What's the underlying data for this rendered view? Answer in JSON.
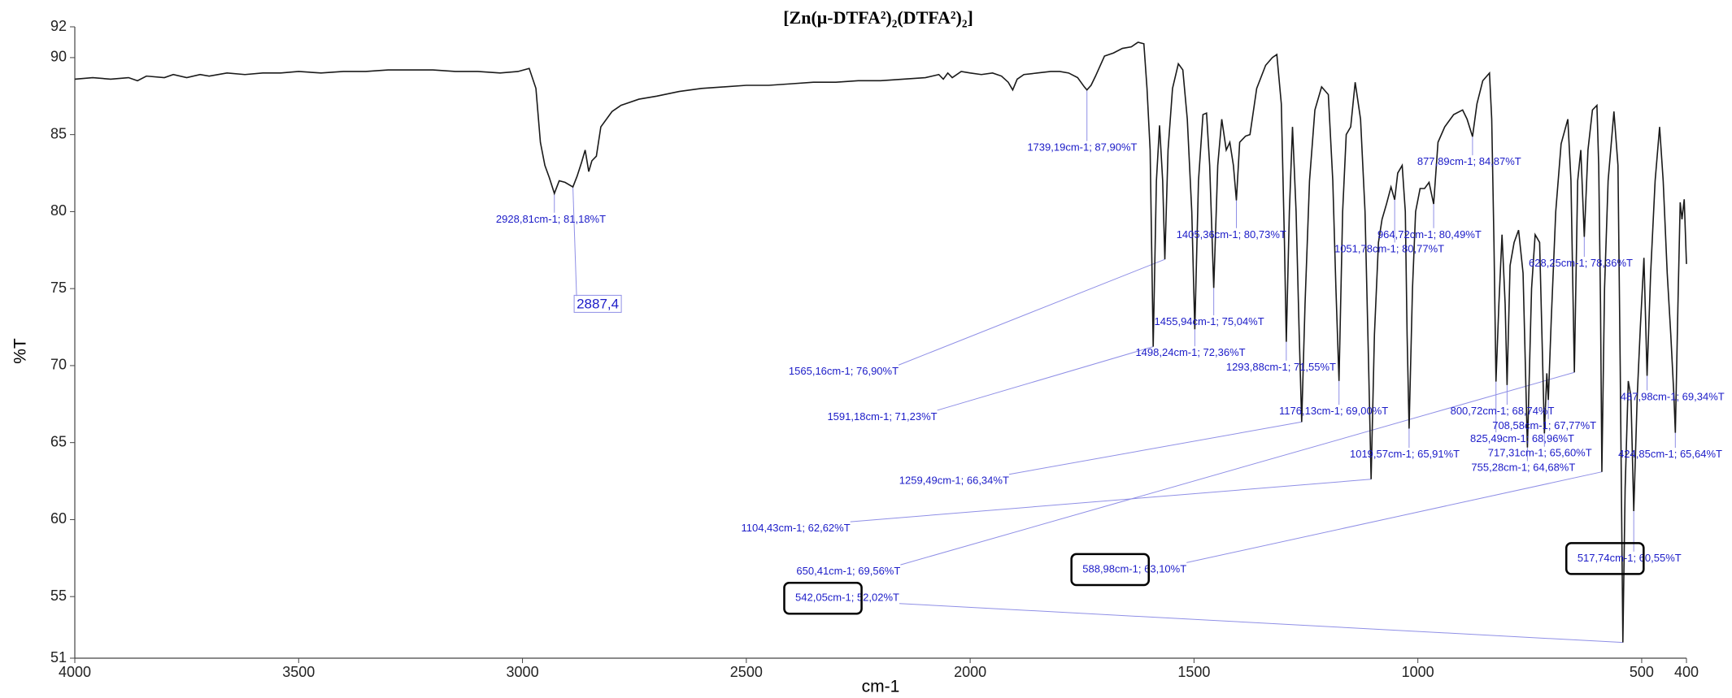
{
  "chart_data": {
    "type": "line",
    "title": "[Zn(μ-DTFA²)₂(DTFA²)₂]",
    "xlabel": "cm-1",
    "ylabel": "%T",
    "color": "#1a1a1a",
    "xlim": [
      4000,
      400
    ],
    "xticks": [
      4000,
      3500,
      3000,
      2500,
      2000,
      1500,
      1000,
      500,
      400
    ],
    "ylim": [
      51,
      92
    ],
    "yticks": [
      51,
      55,
      60,
      65,
      70,
      75,
      80,
      85,
      90,
      92
    ],
    "x": [
      4000,
      3960,
      3920,
      3880,
      3860,
      3840,
      3800,
      3780,
      3750,
      3720,
      3700,
      3660,
      3620,
      3580,
      3540,
      3500,
      3450,
      3400,
      3350,
      3300,
      3250,
      3200,
      3150,
      3100,
      3050,
      3010,
      2985,
      2970,
      2960,
      2950,
      2940,
      2928.81,
      2918,
      2905,
      2887.4,
      2878,
      2868,
      2860,
      2852,
      2845,
      2835,
      2825,
      2800,
      2780,
      2740,
      2700,
      2650,
      2600,
      2550,
      2500,
      2450,
      2400,
      2350,
      2300,
      2250,
      2200,
      2150,
      2100,
      2070,
      2060,
      2050,
      2040,
      2020,
      2000,
      1975,
      1950,
      1930,
      1915,
      1905,
      1895,
      1880,
      1850,
      1820,
      1800,
      1780,
      1760,
      1745,
      1739.19,
      1730,
      1720,
      1700,
      1680,
      1660,
      1640,
      1625,
      1612,
      1605,
      1598,
      1591.18,
      1584,
      1577,
      1570,
      1565.16,
      1558,
      1548,
      1535,
      1525,
      1515,
      1505,
      1498.24,
      1490,
      1480,
      1472,
      1465,
      1455.94,
      1447,
      1438,
      1428,
      1420,
      1412,
      1405.36,
      1398,
      1385,
      1375,
      1360,
      1340,
      1325,
      1315,
      1305,
      1298,
      1293.88,
      1287,
      1280,
      1272,
      1265,
      1259.49,
      1252,
      1242,
      1230,
      1215,
      1200,
      1190,
      1183,
      1176.13,
      1168,
      1160,
      1150,
      1140,
      1128,
      1118,
      1110,
      1104.43,
      1097,
      1088,
      1080,
      1070,
      1060,
      1051.78,
      1045,
      1035,
      1028,
      1024,
      1019.57,
      1012,
      1005,
      995,
      985,
      975,
      964.72,
      955,
      940,
      920,
      900,
      890,
      877.89,
      868,
      855,
      840,
      835,
      830,
      825.49,
      819,
      812,
      805,
      800.72,
      794,
      785,
      775,
      765,
      755.28,
      746,
      738,
      728,
      717.31,
      712,
      708.58,
      702,
      692,
      680,
      665,
      658,
      650.41,
      643,
      636,
      628.25,
      620,
      610,
      600,
      596,
      592,
      588.98,
      583,
      575,
      562,
      553,
      548,
      542.05,
      537,
      530,
      524,
      517.74,
      510,
      503,
      495,
      487.98,
      480,
      470,
      460,
      452,
      443,
      435,
      428,
      424.85,
      419,
      414,
      410,
      405,
      400
    ],
    "values": [
      88.6,
      88.7,
      88.6,
      88.7,
      88.5,
      88.8,
      88.7,
      88.9,
      88.7,
      88.9,
      88.8,
      89.0,
      88.9,
      89.0,
      89.0,
      89.1,
      89.0,
      89.1,
      89.1,
      89.2,
      89.2,
      89.2,
      89.1,
      89.1,
      89.0,
      89.1,
      89.3,
      88.0,
      84.5,
      83.0,
      82.2,
      81.18,
      82.0,
      81.9,
      81.6,
      82.3,
      83.2,
      84.0,
      82.6,
      83.3,
      83.6,
      85.5,
      86.5,
      86.9,
      87.3,
      87.5,
      87.8,
      88.0,
      88.1,
      88.2,
      88.2,
      88.3,
      88.4,
      88.4,
      88.5,
      88.5,
      88.6,
      88.7,
      88.9,
      88.6,
      89.0,
      88.7,
      89.1,
      89.0,
      88.9,
      89.0,
      88.8,
      88.4,
      87.9,
      88.6,
      88.9,
      89.0,
      89.1,
      89.1,
      89.0,
      88.7,
      88.1,
      87.9,
      88.2,
      88.8,
      90.1,
      90.3,
      90.6,
      90.7,
      91.0,
      90.9,
      88.0,
      84.0,
      71.23,
      82.0,
      85.6,
      82.0,
      76.9,
      84.0,
      88.0,
      89.6,
      89.2,
      86.0,
      80.0,
      72.36,
      82.0,
      86.3,
      86.4,
      83.0,
      75.04,
      83.0,
      86.0,
      84.0,
      84.5,
      83.0,
      80.73,
      84.5,
      84.9,
      85.0,
      88.0,
      89.5,
      90.0,
      90.2,
      87.0,
      78.0,
      71.55,
      80.0,
      85.5,
      80.0,
      72.0,
      66.34,
      74.0,
      82.0,
      86.6,
      88.1,
      87.6,
      82.0,
      75.0,
      69.0,
      80.0,
      85.0,
      85.5,
      88.4,
      86.0,
      80.0,
      70.0,
      62.62,
      72.0,
      78.0,
      79.5,
      80.5,
      81.6,
      80.77,
      82.5,
      83.0,
      80.0,
      72.0,
      65.91,
      75.0,
      80.0,
      81.5,
      81.5,
      81.9,
      80.49,
      84.5,
      85.5,
      86.3,
      86.6,
      86.0,
      84.87,
      87.0,
      88.5,
      89.0,
      86.0,
      78.0,
      68.96,
      74.0,
      78.5,
      74.0,
      68.74,
      76.5,
      78.0,
      78.8,
      76.0,
      64.68,
      75.0,
      78.5,
      78.0,
      65.6,
      69.5,
      67.77,
      73.0,
      80.0,
      84.4,
      86.0,
      82.0,
      69.56,
      82.0,
      84.0,
      78.36,
      84.0,
      86.6,
      86.9,
      83.0,
      74.0,
      63.1,
      75.0,
      82.0,
      86.5,
      83.0,
      70.0,
      52.02,
      62.0,
      69.0,
      68.0,
      60.55,
      68.0,
      72.5,
      77.0,
      69.34,
      76.0,
      82.0,
      85.5,
      82.0,
      76.0,
      72.0,
      68.0,
      65.64,
      74.0,
      80.6,
      79.5,
      80.8,
      76.6
    ],
    "annotations": [
      {
        "label": "2928,81cm-1; 81,18%T",
        "x": 2928.81,
        "y": 81.18
      },
      {
        "label": "2887,4",
        "x": 2887.4
      },
      {
        "label": "1739,19cm-1; 87,90%T",
        "x": 1739.19,
        "y": 87.9
      },
      {
        "label": "1591,18cm-1; 71,23%T",
        "x": 1591.18,
        "y": 71.23
      },
      {
        "label": "1565,16cm-1; 76,90%T",
        "x": 1565.16,
        "y": 76.9
      },
      {
        "label": "1498,24cm-1; 72,36%T",
        "x": 1498.24,
        "y": 72.36
      },
      {
        "label": "1455,94cm-1; 75,04%T",
        "x": 1455.94,
        "y": 75.04
      },
      {
        "label": "1405,36cm-1; 80,73%T",
        "x": 1405.36,
        "y": 80.73
      },
      {
        "label": "1293,88cm-1; 71,55%T",
        "x": 1293.88,
        "y": 71.55
      },
      {
        "label": "1259,49cm-1; 66,34%T",
        "x": 1259.49,
        "y": 66.34
      },
      {
        "label": "1176,13cm-1; 69,00%T",
        "x": 1176.13,
        "y": 69.0
      },
      {
        "label": "1104,43cm-1; 62,62%T",
        "x": 1104.43,
        "y": 62.62
      },
      {
        "label": "1051,78cm-1; 80,77%T",
        "x": 1051.78,
        "y": 80.77
      },
      {
        "label": "1019,57cm-1; 65,91%T",
        "x": 1019.57,
        "y": 65.91
      },
      {
        "label": "964,72cm-1; 80,49%T",
        "x": 964.72,
        "y": 80.49
      },
      {
        "label": "877,89cm-1; 84,87%T",
        "x": 877.89,
        "y": 84.87
      },
      {
        "label": "825,49cm-1; 68,96%T",
        "x": 825.49,
        "y": 68.96
      },
      {
        "label": "800,72cm-1; 68,74%T",
        "x": 800.72,
        "y": 68.74
      },
      {
        "label": "755,28cm-1; 64,68%T",
        "x": 755.28,
        "y": 64.68
      },
      {
        "label": "717,31cm-1; 65,60%T",
        "x": 717.31,
        "y": 65.6
      },
      {
        "label": "708,58cm-1; 67,77%T",
        "x": 708.58,
        "y": 67.77
      },
      {
        "label": "650,41cm-1; 69,56%T",
        "x": 650.41,
        "y": 69.56
      },
      {
        "label": "628,25cm-1; 78,36%T",
        "x": 628.25,
        "y": 78.36
      },
      {
        "label": "588,98cm-1; 63,10%T",
        "x": 588.98,
        "y": 63.1
      },
      {
        "label": "542,05cm-1; 52,02%T",
        "x": 542.05,
        "y": 52.02
      },
      {
        "label": "517,74cm-1; 60,55%T",
        "x": 517.74,
        "y": 60.55
      },
      {
        "label": "487,98cm-1; 69,34%T",
        "x": 487.98,
        "y": 69.34
      },
      {
        "label": "424,85cm-1; 65,64%T",
        "x": 424.85,
        "y": 65.64
      }
    ]
  }
}
